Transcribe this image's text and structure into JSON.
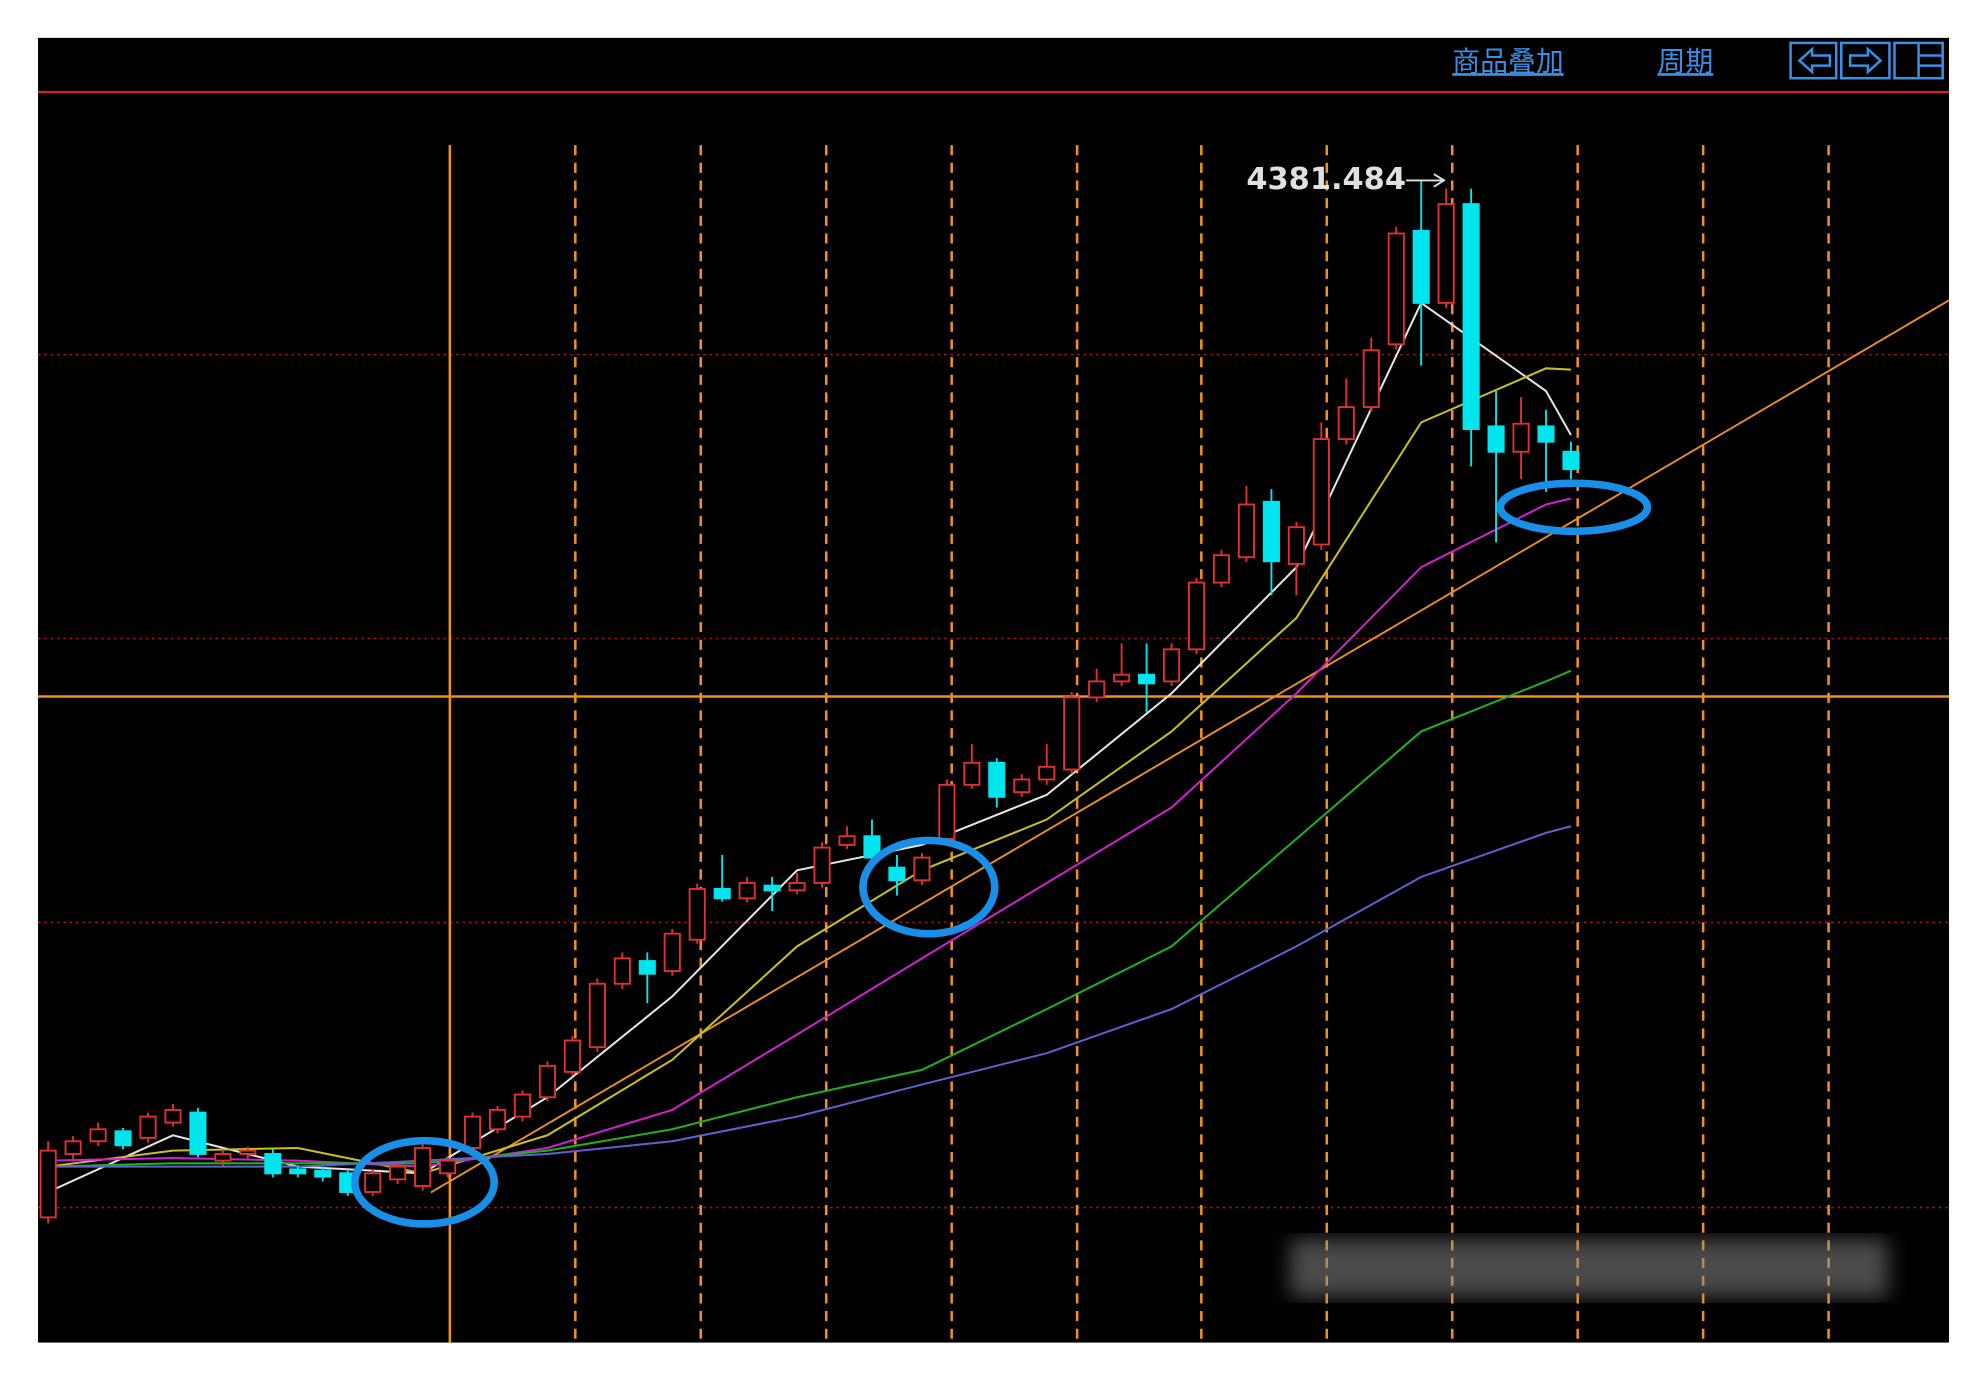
{
  "toolbar": {
    "overlay": "商品叠加",
    "period": "周期"
  },
  "chart_data": {
    "type": "candlestick",
    "up_color": "#e03030",
    "down_color": "#00e5ee",
    "ylim": [
      2648,
      4510
    ],
    "open": [
      2828,
      2923,
      2942,
      2957,
      2947,
      2970,
      2985,
      2913,
      2923,
      2923,
      2900,
      2898,
      2894,
      2866,
      2885,
      2875,
      2894,
      2932,
      2960,
      2979,
      3008,
      3046,
      3083,
      3178,
      3212,
      3197,
      3244,
      3320,
      3306,
      3325,
      3318,
      3329,
      3386,
      3399,
      3352,
      3333,
      3395,
      3476,
      3509,
      3465,
      3484,
      3499,
      3607,
      3631,
      3641,
      3631,
      3679,
      3779,
      3817,
      3900,
      3807,
      3836,
      3994,
      4042,
      4136,
      4306,
      4198,
      4346,
      4013,
      3975,
      4013,
      3975
    ],
    "high": [
      2942,
      2950,
      2970,
      2962,
      2985,
      2998,
      2992,
      2930,
      2934,
      2930,
      2906,
      2904,
      2900,
      2900,
      2910,
      2942,
      2920,
      2985,
      2995,
      3018,
      3062,
      3100,
      3186,
      3225,
      3225,
      3260,
      3328,
      3371,
      3338,
      3338,
      3344,
      3390,
      3414,
      3424,
      3371,
      3374,
      3484,
      3537,
      3516,
      3492,
      3537,
      3615,
      3650,
      3688,
      3688,
      3688,
      3786,
      3828,
      3924,
      3919,
      3870,
      4019,
      4085,
      4146,
      4312,
      4381.484,
      4369,
      4369,
      4066,
      4057,
      4038,
      3990
    ],
    "low": [
      2819,
      2915,
      2935,
      2930,
      2940,
      2964,
      2918,
      2905,
      2916,
      2888,
      2888,
      2882,
      2860,
      2860,
      2878,
      2868,
      2888,
      2926,
      2954,
      2972,
      3002,
      3040,
      3076,
      3170,
      3149,
      3190,
      3238,
      3301,
      3300,
      3287,
      3312,
      3322,
      3380,
      3360,
      3310,
      3326,
      3388,
      3470,
      3442,
      3458,
      3476,
      3492,
      3600,
      3624,
      3584,
      3624,
      3672,
      3772,
      3810,
      3760,
      3760,
      3828,
      3986,
      4035,
      4128,
      4104,
      4190,
      3953,
      3839,
      3934,
      3915,
      3934
    ],
    "close": [
      2928,
      2942,
      2960,
      2936,
      2979,
      2989,
      2923,
      2923,
      2928,
      2894,
      2894,
      2889,
      2866,
      2894,
      2904,
      2932,
      2913,
      2979,
      2989,
      3012,
      3055,
      3093,
      3178,
      3216,
      3193,
      3253,
      3320,
      3306,
      3329,
      3318,
      3329,
      3382,
      3399,
      3367,
      3333,
      3367,
      3476,
      3509,
      3458,
      3484,
      3503,
      3607,
      3631,
      3641,
      3628,
      3679,
      3779,
      3820,
      3896,
      3811,
      3862,
      3994,
      4042,
      4127,
      4302,
      4198,
      4346,
      4009,
      3975,
      4017,
      3990,
      3949
    ],
    "peak_label_index": 55,
    "ma_x": [
      0,
      5,
      10,
      15,
      20,
      25,
      30,
      35,
      40,
      45,
      50,
      55,
      60,
      61
    ],
    "series": [
      {
        "color": "#e6e6e6",
        "values": [
          2866,
          2951,
          2904,
          2894,
          3008,
          3159,
          3348,
          3386,
          3461,
          3613,
          3802,
          4198,
          4066,
          4000
        ]
      },
      {
        "color": "#c8c020",
        "values": [
          2904,
          2928,
          2932,
          2894,
          2951,
          3064,
          3234,
          3348,
          3424,
          3556,
          3726,
          4019,
          4100,
          4098
        ]
      },
      {
        "color": "#d020d0",
        "values": [
          2913,
          2917,
          2913,
          2904,
          2932,
          2989,
          3102,
          3216,
          3329,
          3442,
          3613,
          3802,
          3896,
          3905
        ]
      },
      {
        "color": "#20b020",
        "values": [
          2904,
          2909,
          2909,
          2909,
          2928,
          2960,
          3008,
          3049,
          3140,
          3234,
          3395,
          3556,
          3631,
          3647
        ]
      },
      {
        "color": "#6060d0",
        "values": [
          2904,
          2904,
          2904,
          2913,
          2923,
          2942,
          2979,
          3027,
          3074,
          3140,
          3234,
          3338,
          3404,
          3414
        ]
      }
    ]
  }
}
